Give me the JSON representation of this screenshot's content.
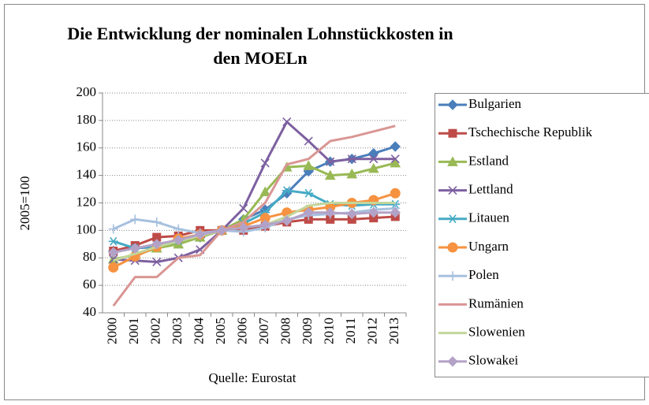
{
  "chart_data": {
    "type": "line",
    "title": "Die Entwicklung der nominalen Lohnstückkosten in den MOELn",
    "title_lines": [
      "Die Entwicklung der nominalen Lohnstückkosten in",
      "den MOELn"
    ],
    "ylabel": "2005=100",
    "source": "Quelle: Eurostat",
    "categories": [
      "2000",
      "2001",
      "2002",
      "2003",
      "2004",
      "2005",
      "2006",
      "2007",
      "2008",
      "2009",
      "2010",
      "2011",
      "2012",
      "2013"
    ],
    "ylim": [
      40,
      200
    ],
    "yticks": [
      40,
      60,
      80,
      100,
      120,
      140,
      160,
      180,
      200
    ],
    "grid": true,
    "legend": "right",
    "series": [
      {
        "name": "Bulgarien",
        "color": "#4a7ebb",
        "marker": "diamond",
        "values": [
          85,
          87,
          88,
          91,
          95,
          100,
          108,
          115,
          127,
          143,
          150,
          152,
          156,
          161
        ]
      },
      {
        "name": "Tschechische Republik",
        "color": "#be4b48",
        "marker": "square",
        "values": [
          85,
          89,
          95,
          96,
          100,
          100,
          100,
          103,
          106,
          108,
          108,
          108,
          109,
          110
        ]
      },
      {
        "name": "Estland",
        "color": "#98b954",
        "marker": "triangle",
        "values": [
          79,
          82,
          87,
          90,
          95,
          100,
          108,
          128,
          146,
          147,
          140,
          141,
          145,
          149
        ]
      },
      {
        "name": "Lettland",
        "color": "#7d60a0",
        "marker": "x",
        "values": [
          79,
          78,
          77,
          80,
          86,
          100,
          116,
          149,
          179,
          165,
          150,
          152,
          152,
          152
        ]
      },
      {
        "name": "Litauen",
        "color": "#46aac5",
        "marker": "star",
        "values": [
          92,
          87,
          89,
          93,
          97,
          100,
          105,
          113,
          129,
          127,
          119,
          118,
          119,
          119
        ]
      },
      {
        "name": "Ungarn",
        "color": "#f69240",
        "marker": "circle",
        "values": [
          73,
          81,
          88,
          94,
          97,
          100,
          103,
          109,
          113,
          115,
          117,
          120,
          122,
          127
        ]
      },
      {
        "name": "Polen",
        "color": "#a7c0de",
        "marker": "plus",
        "values": [
          101,
          108,
          106,
          101,
          98,
          100,
          99,
          102,
          108,
          111,
          112,
          113,
          115,
          116
        ]
      },
      {
        "name": "Rumänien",
        "color": "#d99694",
        "marker": "none",
        "values": [
          45,
          66,
          66,
          80,
          82,
          100,
          106,
          120,
          148,
          152,
          165,
          168,
          172,
          176
        ]
      },
      {
        "name": "Slowenien",
        "color": "#c3d69b",
        "marker": "none",
        "values": [
          78,
          83,
          88,
          92,
          96,
          100,
          102,
          104,
          110,
          118,
          120,
          120,
          120,
          120
        ]
      },
      {
        "name": "Slowakei",
        "color": "#b3a2c7",
        "marker": "diamond",
        "values": [
          84,
          87,
          90,
          93,
          97,
          100,
          102,
          104,
          107,
          113,
          113,
          112,
          113,
          113
        ]
      }
    ]
  }
}
